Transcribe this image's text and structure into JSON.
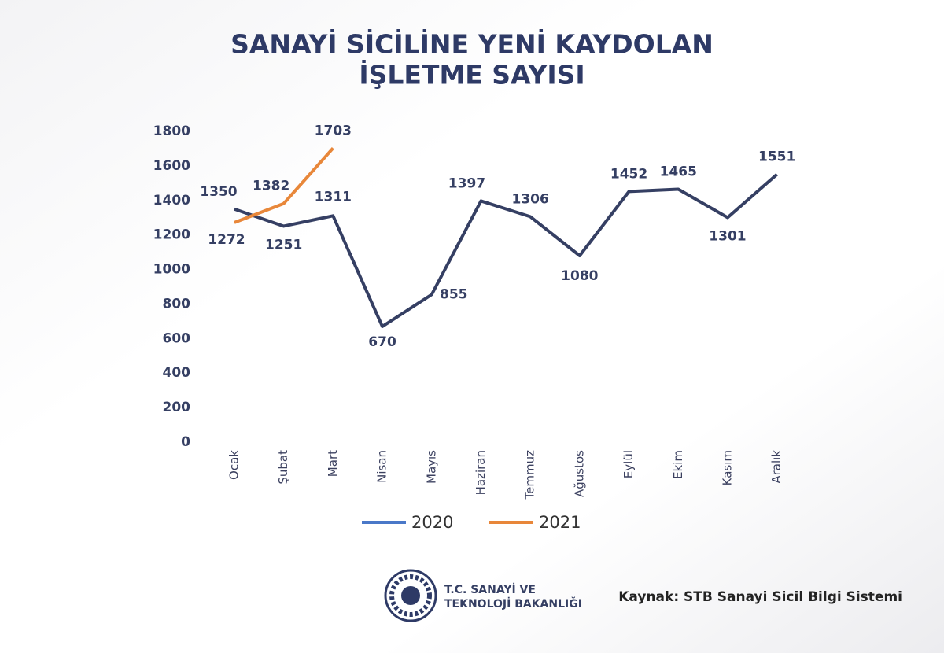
{
  "chart_data": {
    "type": "line",
    "title_lines": [
      "SANAYİ SİCİLİNE YENİ KAYDOLAN",
      "İŞLETME SAYISI"
    ],
    "categories": [
      "Ocak",
      "Şubat",
      "Mart",
      "Nisan",
      "Mayıs",
      "Haziran",
      "Temmuz",
      "Ağustos",
      "Eylül",
      "Ekim",
      "Kasım",
      "Aralık"
    ],
    "series": [
      {
        "name": "2020",
        "color": "#353f63",
        "legend_color": "#4a78c8",
        "values": [
          1350,
          1251,
          1311,
          670,
          855,
          1397,
          1306,
          1080,
          1452,
          1465,
          1301,
          1551
        ]
      },
      {
        "name": "2021",
        "color": "#e8873a",
        "legend_color": "#e8873a",
        "values": [
          1272,
          1382,
          1703,
          null,
          null,
          null,
          null,
          null,
          null,
          null,
          null,
          null
        ]
      }
    ],
    "ylim": [
      0,
      1800
    ],
    "yticks": [
      0,
      200,
      400,
      600,
      800,
      1000,
      1200,
      1400,
      1600,
      1800
    ],
    "grid": false,
    "legend": "bottom"
  },
  "footer": {
    "logo_lines": [
      "T.C. SANAYİ VE",
      "TEKNOLOJİ BAKANLIĞI"
    ],
    "source": "Kaynak: STB Sanayi Sicil Bilgi Sistemi"
  }
}
